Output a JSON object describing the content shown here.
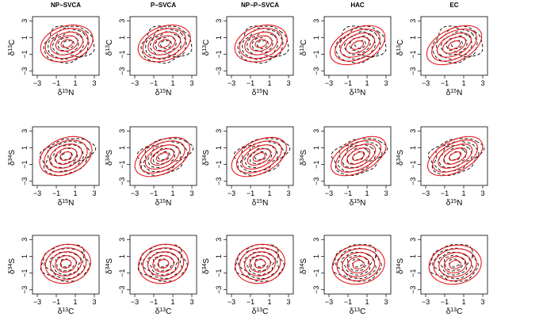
{
  "figure": {
    "columns": [
      "NP−SVCA",
      "P−SVCA",
      "NP−P−SVCA",
      "HAC",
      "EC"
    ],
    "rows": [
      {
        "xlabel": {
          "base": "δ",
          "sup": "15",
          "name": "N"
        },
        "ylabel": {
          "base": "δ",
          "sup": "13",
          "name": "C"
        }
      },
      {
        "xlabel": {
          "base": "δ",
          "sup": "15",
          "name": "N"
        },
        "ylabel": {
          "base": "δ",
          "sup": "34",
          "name": "S"
        }
      },
      {
        "xlabel": {
          "base": "δ",
          "sup": "13",
          "name": "C"
        },
        "ylabel": {
          "base": "δ",
          "sup": "34",
          "name": "S"
        }
      }
    ]
  },
  "chart_data": {
    "type": "contour",
    "xlim": [
      -3.5,
      3.5
    ],
    "ylim": [
      -3.5,
      3.5
    ],
    "xticks": [
      -3,
      -1,
      1,
      3
    ],
    "yticks": [
      -3,
      -1,
      1,
      3
    ],
    "colors": {
      "fitted": "#e41a1c",
      "empirical": "#000000"
    },
    "line_styles": {
      "fitted": "solid",
      "empirical": "dashed"
    },
    "contour_radii": [
      0.6,
      1.15,
      1.7,
      2.25,
      2.75
    ],
    "empirical": [
      {
        "center": [
          0.3,
          0.2
        ],
        "sx": 0.95,
        "sy": 0.8,
        "rho": 0.1
      },
      {
        "center": [
          0.1,
          0.0
        ],
        "sx": 1.0,
        "sy": 0.8,
        "rho": 0.3
      },
      {
        "center": [
          0.0,
          0.2
        ],
        "sx": 0.9,
        "sy": 0.8,
        "rho": 0.0
      }
    ],
    "fitted": [
      [
        {
          "center": [
            0.1,
            0.3
          ],
          "sx": 1.0,
          "sy": 0.8,
          "rho": 0.25
        },
        {
          "center": [
            0.1,
            0.3
          ],
          "sx": 1.0,
          "sy": 0.8,
          "rho": 0.3
        },
        {
          "center": [
            0.1,
            0.3
          ],
          "sx": 1.0,
          "sy": 0.8,
          "rho": 0.25
        },
        {
          "center": [
            0.0,
            0.1
          ],
          "sx": 1.05,
          "sy": 0.85,
          "rho": 0.4
        },
        {
          "center": [
            0.0,
            0.1
          ],
          "sx": 1.05,
          "sy": 0.85,
          "rho": 0.45
        }
      ],
      [
        {
          "center": [
            0.0,
            0.0
          ],
          "sx": 1.0,
          "sy": 0.85,
          "rho": 0.3
        },
        {
          "center": [
            -0.1,
            -0.1
          ],
          "sx": 1.05,
          "sy": 0.85,
          "rho": 0.45
        },
        {
          "center": [
            -0.1,
            -0.1
          ],
          "sx": 1.05,
          "sy": 0.85,
          "rho": 0.45
        },
        {
          "center": [
            0.1,
            0.0
          ],
          "sx": 1.05,
          "sy": 0.85,
          "rho": 0.5
        },
        {
          "center": [
            0.1,
            0.0
          ],
          "sx": 1.05,
          "sy": 0.85,
          "rho": 0.5
        }
      ],
      [
        {
          "center": [
            0.0,
            0.1
          ],
          "sx": 0.95,
          "sy": 0.85,
          "rho": 0.1
        },
        {
          "center": [
            0.0,
            0.1
          ],
          "sx": 0.95,
          "sy": 0.85,
          "rho": 0.1
        },
        {
          "center": [
            0.0,
            0.1
          ],
          "sx": 0.95,
          "sy": 0.85,
          "rho": 0.1
        },
        {
          "center": [
            0.1,
            0.0
          ],
          "sx": 1.0,
          "sy": 0.85,
          "rho": 0.1
        },
        {
          "center": [
            0.1,
            0.0
          ],
          "sx": 1.0,
          "sy": 0.85,
          "rho": 0.1
        }
      ]
    ]
  }
}
